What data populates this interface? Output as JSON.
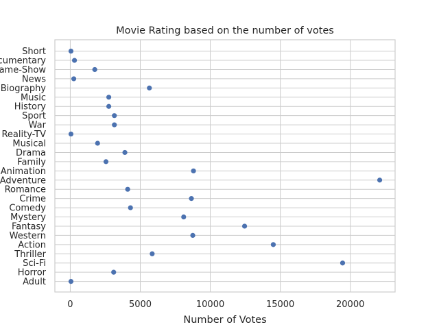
{
  "chart_data": {
    "type": "scatter",
    "title": "Movie Rating based on the number of votes",
    "xlabel": "Number of Votes",
    "ylabel": "",
    "xlim": [
      -1100,
      23200
    ],
    "xticks": [
      0,
      5000,
      10000,
      15000,
      20000
    ],
    "xtick_labels": [
      "0",
      "5000",
      "10000",
      "15000",
      "20000"
    ],
    "grid": true,
    "legend": "none",
    "marker_color": "#4c72b0",
    "categories": [
      "Short",
      "Documentary",
      "Game-Show",
      "News",
      "Biography",
      "Music",
      "History",
      "Sport",
      "War",
      "Reality-TV",
      "Musical",
      "Drama",
      "Family",
      "Animation",
      "Adventure",
      "Romance",
      "Crime",
      "Comedy",
      "Mystery",
      "Fantasy",
      "Western",
      "Action",
      "Thriller",
      "Sci-Fi",
      "Horror",
      "Adult"
    ],
    "values": [
      50,
      300,
      1750,
      250,
      5650,
      2750,
      2750,
      3150,
      3150,
      50,
      1950,
      3900,
      2550,
      8800,
      22100,
      4100,
      8650,
      4300,
      8100,
      12450,
      8750,
      14500,
      5850,
      19450,
      3100,
      50
    ]
  }
}
